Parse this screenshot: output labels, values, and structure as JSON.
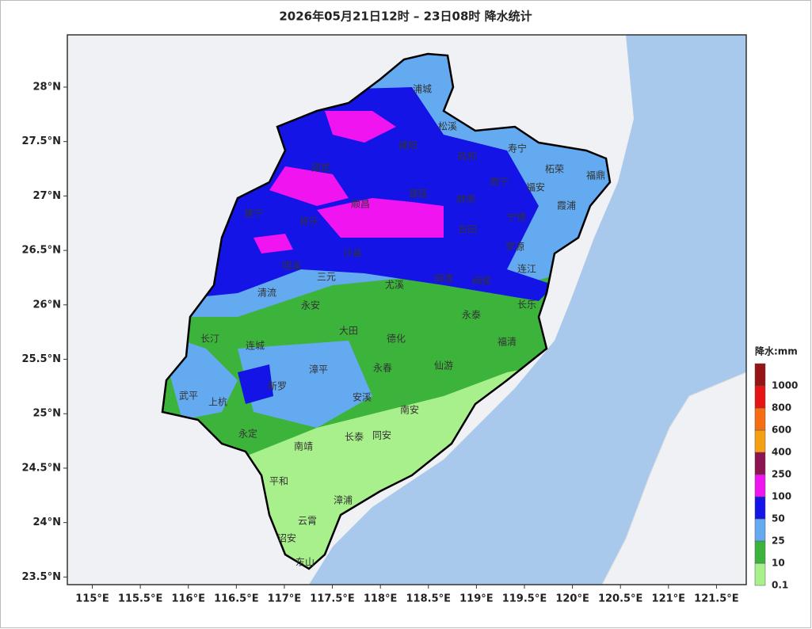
{
  "header": {
    "title": "2026年05月21日12时 – 23日08时  降水统计"
  },
  "map": {
    "lon_range": [
      114.74,
      121.81
    ],
    "lat_range": [
      23.43,
      28.48
    ],
    "lon_ticks": [
      {
        "value": 115,
        "label": "115°E"
      },
      {
        "value": 115.5,
        "label": "115.5°E"
      },
      {
        "value": 116,
        "label": "116°E"
      },
      {
        "value": 116.5,
        "label": "116.5°E"
      },
      {
        "value": 117,
        "label": "117°E"
      },
      {
        "value": 117.5,
        "label": "117.5°E"
      },
      {
        "value": 118,
        "label": "118°E"
      },
      {
        "value": 118.5,
        "label": "118.5°E"
      },
      {
        "value": 119,
        "label": "119°E"
      },
      {
        "value": 119.5,
        "label": "119.5°E"
      },
      {
        "value": 120,
        "label": "120°E"
      },
      {
        "value": 120.5,
        "label": "120.5°E"
      },
      {
        "value": 121,
        "label": "121°E"
      },
      {
        "value": 121.5,
        "label": "121.5°E"
      }
    ],
    "lat_ticks": [
      {
        "value": 28,
        "label": "28°N"
      },
      {
        "value": 27.5,
        "label": "27.5°N"
      },
      {
        "value": 27,
        "label": "27°N"
      },
      {
        "value": 26.5,
        "label": "26.5°N"
      },
      {
        "value": 26,
        "label": "26°N"
      },
      {
        "value": 25.5,
        "label": "25.5°N"
      },
      {
        "value": 25,
        "label": "25°N"
      },
      {
        "value": 24.5,
        "label": "24.5°N"
      },
      {
        "value": 24,
        "label": "24°N"
      },
      {
        "value": 23.5,
        "label": "23.5°N"
      }
    ],
    "cities": [
      "浦城",
      "松溪",
      "政和",
      "寿宁",
      "福鼎",
      "柘荣",
      "周宁",
      "福安",
      "霞浦",
      "建阳",
      "邵武",
      "建宁",
      "将乐",
      "顺昌",
      "建瓯",
      "屏南",
      "古田",
      "宁德",
      "罗源",
      "连江",
      "沙县",
      "明溪",
      "三元",
      "尤溪",
      "闽清",
      "闽侯",
      "长乐",
      "清流",
      "永安",
      "长汀",
      "连城",
      "大田",
      "德化",
      "永泰",
      "福清",
      "仙游",
      "永春",
      "漳平",
      "新罗",
      "武平",
      "上杭",
      "安溪",
      "南安",
      "永定",
      "南靖",
      "长泰",
      "同安",
      "平和",
      "漳浦",
      "云霄",
      "诏安",
      "东山"
    ]
  },
  "legend": {
    "title": "降水:mm",
    "levels": [
      {
        "value": 0.1,
        "color": "#a8f08c"
      },
      {
        "value": 10,
        "color": "#3cb43c"
      },
      {
        "value": 25,
        "color": "#64aaf0"
      },
      {
        "value": 50,
        "color": "#1414e6"
      },
      {
        "value": 100,
        "color": "#f014f0"
      },
      {
        "value": 250,
        "color": "#8c1450"
      },
      {
        "value": 400,
        "color": "#f5a014"
      },
      {
        "value": 600,
        "color": "#f56e14"
      },
      {
        "value": 800,
        "color": "#e61414"
      },
      {
        "value": 1000,
        "color": "#961414"
      }
    ]
  }
}
